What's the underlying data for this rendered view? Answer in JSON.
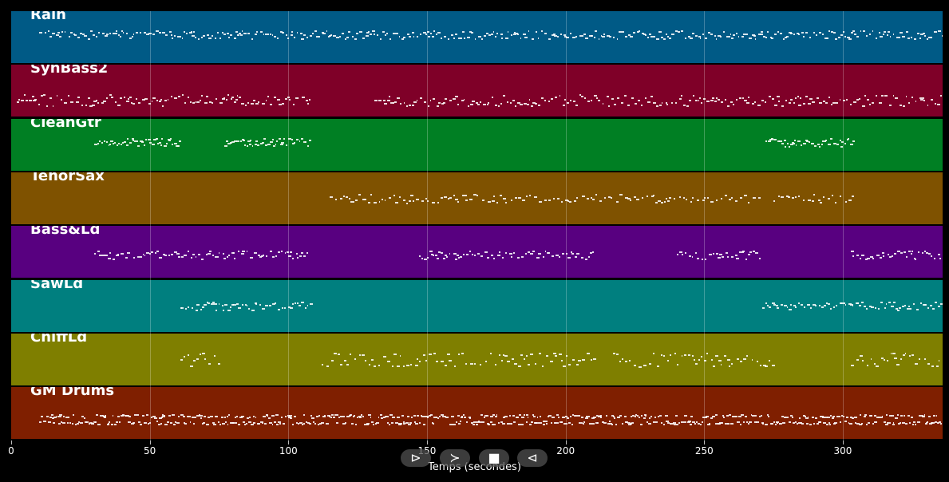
{
  "tracks": [
    {
      "name": "Rain",
      "color": "#005a86",
      "segments": [
        [
          10,
          336
        ]
      ],
      "lanes": [
        0.45,
        0.4,
        0.5
      ],
      "density": 2.2
    },
    {
      "name": "SynBass2",
      "color": "#7f0028",
      "segments": [
        [
          2,
          108
        ],
        [
          131,
          336
        ]
      ],
      "lanes": [
        0.7,
        0.65,
        0.75,
        0.6
      ],
      "density": 2.0
    },
    {
      "name": "CleanGtr",
      "color": "#007f23",
      "segments": [
        [
          30,
          61
        ],
        [
          77,
          108
        ],
        [
          272,
          304
        ]
      ],
      "lanes": [
        0.4,
        0.45,
        0.5
      ],
      "density": 3.0
    },
    {
      "name": "TenorSax",
      "color": "#7f5200",
      "segments": [
        [
          115,
          270
        ],
        [
          275,
          304
        ]
      ],
      "lanes": [
        0.5,
        0.45,
        0.55
      ],
      "density": 1.6
    },
    {
      "name": "Bass&Ld",
      "color": "#580080",
      "segments": [
        [
          30,
          108
        ],
        [
          147,
          210
        ],
        [
          240,
          271
        ],
        [
          303,
          336
        ]
      ],
      "lanes": [
        0.55,
        0.5,
        0.6
      ],
      "density": 2.0
    },
    {
      "name": "SawLd",
      "color": "#007f7f",
      "segments": [
        [
          61,
          108
        ],
        [
          271,
          336
        ]
      ],
      "lanes": [
        0.45,
        0.55,
        0.5
      ],
      "density": 2.2
    },
    {
      "name": "ChiffLd",
      "color": "#7f7f00",
      "segments": [
        [
          61,
          76
        ],
        [
          112,
          210
        ],
        [
          217,
          275
        ],
        [
          303,
          336
        ]
      ],
      "lanes": [
        0.4,
        0.5,
        0.6
      ],
      "density": 1.6
    },
    {
      "name": "GM Drums",
      "color": "#7f1f00",
      "segments": [
        [
          10,
          336
        ]
      ],
      "lanes": [
        0.55,
        0.68
      ],
      "density": 4.0
    }
  ],
  "axis": {
    "min": 0,
    "max": 336,
    "ticks": [
      0,
      50,
      100,
      150,
      200,
      250,
      300
    ],
    "tick_labels": [
      "0",
      "50",
      "100",
      "150",
      "200",
      "250",
      "300"
    ],
    "label": "Temps (secondes)"
  },
  "controls": {
    "play_label": "⊳",
    "forward_label": "≻",
    "stop_label": "■",
    "rewind_label": "⊲"
  }
}
